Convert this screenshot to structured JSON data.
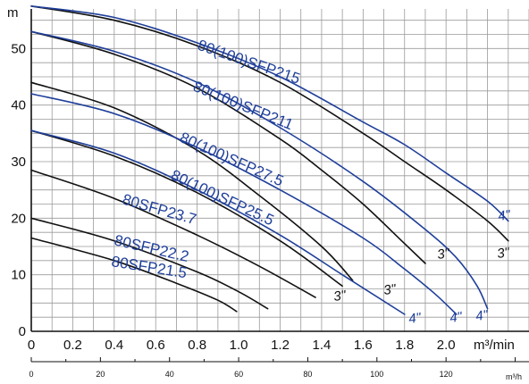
{
  "chart_data": {
    "type": "line",
    "x_unit": "m³/min",
    "x2_unit": "m³/h",
    "y_unit": "m",
    "xlim": [
      0,
      2.4
    ],
    "ylim": [
      0,
      57
    ],
    "x_ticks": [
      "0",
      "0.2",
      "0.4",
      "0.6",
      "0.8",
      "1.0",
      "1.2",
      "1.4",
      "1.6",
      "1.8",
      "2.0"
    ],
    "x_tick_values": [
      0,
      0.2,
      0.4,
      0.6,
      0.8,
      1.0,
      1.2,
      1.4,
      1.6,
      1.8,
      2.0
    ],
    "x2_ticks": [
      "0",
      "20",
      "40",
      "60",
      "80",
      "100",
      "120"
    ],
    "x2_tick_values": [
      0,
      20,
      40,
      60,
      80,
      100,
      120
    ],
    "y_ticks": [
      "0",
      "10",
      "20",
      "30",
      "40",
      "50"
    ],
    "y_tick_values": [
      0,
      10,
      20,
      30,
      40,
      50
    ],
    "grid": true,
    "colors": {
      "black": "#111111",
      "blue": "#1f3f9a",
      "grid": "#9a9a9a"
    },
    "series": [
      {
        "name": "80(100)SFP215",
        "size": "3\"",
        "color": "black",
        "x": [
          0,
          0.4,
          0.8,
          1.2,
          1.6,
          1.8,
          2.0,
          2.2,
          2.3
        ],
        "y": [
          57.5,
          55,
          50.5,
          44,
          35,
          30,
          25,
          19.5,
          16
        ]
      },
      {
        "name": "80(100)SFP215",
        "size": "4\"",
        "color": "blue",
        "x": [
          0,
          0.4,
          0.8,
          1.2,
          1.6,
          1.8,
          2.0,
          2.2,
          2.3
        ],
        "y": [
          57.5,
          55.5,
          51,
          45,
          37,
          33,
          28,
          23,
          19.5
        ]
      },
      {
        "name": "80(100)SFP211",
        "size": "3\"",
        "color": "black",
        "x": [
          0,
          0.4,
          0.8,
          1.2,
          1.4,
          1.6,
          1.8,
          1.9
        ],
        "y": [
          53,
          49,
          43,
          34,
          28.5,
          22.5,
          15.5,
          12
        ]
      },
      {
        "name": "80(100)SFP211",
        "size": "4\"",
        "color": "blue",
        "x": [
          0,
          0.4,
          0.8,
          1.2,
          1.6,
          1.9,
          2.05,
          2.15,
          2.2
        ],
        "y": [
          53,
          49.5,
          44,
          36,
          26.5,
          18,
          13,
          8,
          4
        ]
      },
      {
        "name": "80(100)SFP27.5",
        "size": "3\"",
        "color": "black",
        "x": [
          0,
          0.4,
          0.8,
          1.1,
          1.4,
          1.55
        ],
        "y": [
          44,
          39.5,
          32,
          24,
          15,
          9
        ]
      },
      {
        "name": "80(100)SFP27.5",
        "size": "4\"",
        "color": "blue",
        "x": [
          0,
          0.4,
          0.8,
          1.2,
          1.6,
          1.8,
          1.95,
          2.05
        ],
        "y": [
          42,
          38.5,
          32.5,
          25,
          16.5,
          11,
          6.5,
          3
        ]
      },
      {
        "name": "80(100)SFP25.5",
        "size": "3\"",
        "color": "black",
        "x": [
          0,
          0.4,
          0.8,
          1.2,
          1.5
        ],
        "y": [
          35.5,
          31,
          24.5,
          16,
          8
        ]
      },
      {
        "name": "80(100)SFP25.5",
        "size": "4\"",
        "color": "blue",
        "x": [
          0,
          0.4,
          0.8,
          1.2,
          1.5,
          1.8
        ],
        "y": [
          35.5,
          31.5,
          25,
          17,
          10,
          3
        ]
      },
      {
        "name": "80SFP23.7",
        "color": "black",
        "x": [
          0,
          0.4,
          0.8,
          1.1,
          1.37
        ],
        "y": [
          28.5,
          23.5,
          17,
          11.5,
          6
        ]
      },
      {
        "name": "80SFP22.2",
        "color": "black",
        "x": [
          0,
          0.4,
          0.8,
          1.0,
          1.14
        ],
        "y": [
          20,
          16,
          10.5,
          7,
          4
        ]
      },
      {
        "name": "80SFP21.5",
        "color": "black",
        "x": [
          0,
          0.4,
          0.7,
          0.9,
          0.99
        ],
        "y": [
          16.5,
          12.5,
          8.5,
          5.5,
          3.5
        ]
      }
    ],
    "curve_labels": [
      {
        "text": "80(100)SFP215",
        "series": 1
      },
      {
        "text": "80(100)SFP211",
        "series": 2
      },
      {
        "text": "80(100)SFP27.5",
        "series": 4
      },
      {
        "text": "80(100)SFP25.5",
        "series": 6
      },
      {
        "text": "80SFP23.7",
        "series": 8
      },
      {
        "text": "80SFP22.2",
        "series": 9
      },
      {
        "text": "80SFP21.5",
        "series": 10
      }
    ],
    "size_labels": [
      {
        "text": "4\"",
        "series": 1,
        "style": "blue"
      },
      {
        "text": "3\"",
        "series": 0,
        "style": "black"
      },
      {
        "text": "3\"",
        "series": 2,
        "style": "black"
      },
      {
        "text": "4\"",
        "series": 3,
        "style": "blue"
      },
      {
        "text": "4\"",
        "series": 5,
        "style": "blue"
      },
      {
        "text": "3\"",
        "series": 4,
        "style": "black"
      },
      {
        "text": "4\"",
        "series": 7,
        "style": "blue"
      },
      {
        "text": "3\"",
        "series": 6,
        "style": "black"
      }
    ]
  }
}
